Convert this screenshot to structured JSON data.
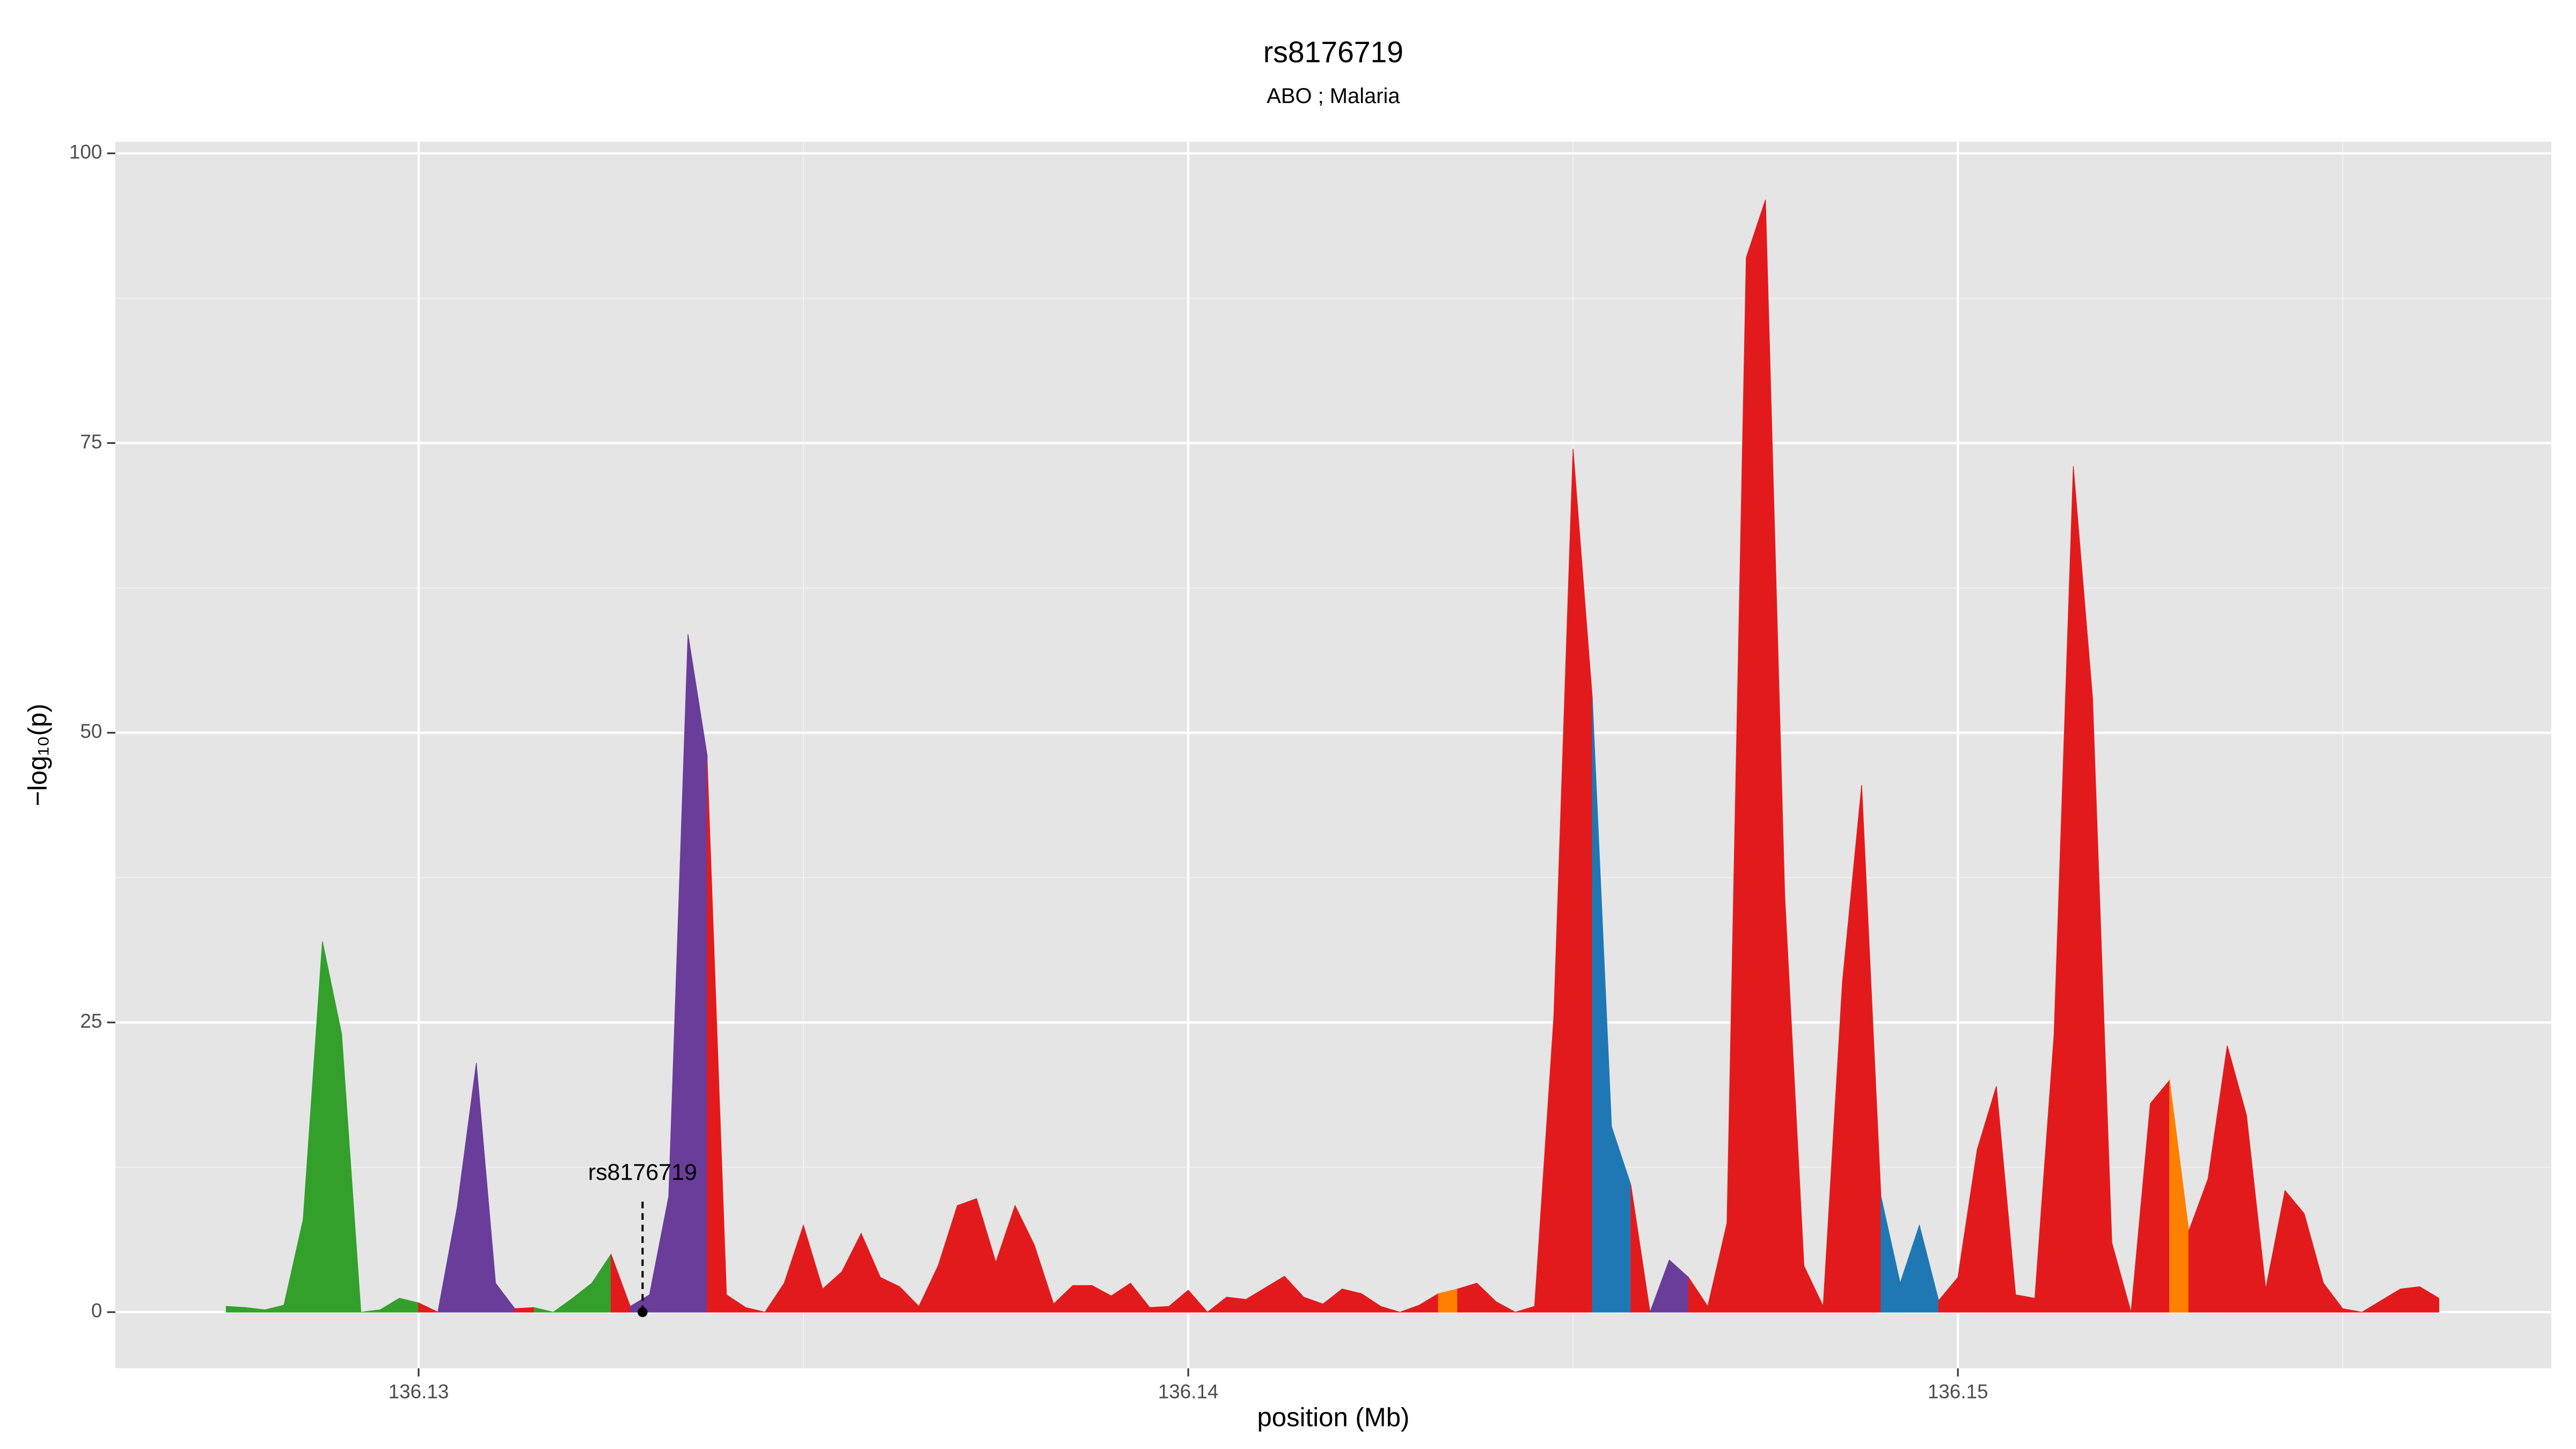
{
  "chart_data": {
    "type": "area",
    "title": "rs8176719",
    "subtitle": "ABO ; Malaria",
    "x_label": "position (Mb)",
    "y_label": "−log₁₀(p)",
    "xlim": [
      136.12606,
      136.15771
    ],
    "ylim": [
      -4.84,
      101
    ],
    "xticks": [
      136.13,
      136.14,
      136.15
    ],
    "yticks": [
      0,
      25,
      50,
      75,
      100
    ],
    "grid": true,
    "series": [
      {
        "color": "#33a02c",
        "x": [
          136.1275,
          136.12775,
          136.128,
          136.12825,
          136.1285,
          136.12875,
          136.129,
          136.12925,
          136.1295,
          136.12975,
          136.13
        ],
        "values": [
          0.5,
          0.4,
          0.2,
          0.6,
          8,
          32,
          24,
          0,
          0.2,
          1.2,
          0.8
        ]
      },
      {
        "color": "#e31a1c",
        "x": [
          136.13,
          136.13025
        ],
        "values": [
          0.8,
          0
        ]
      },
      {
        "color": "#6a3d9a",
        "x": [
          136.13025,
          136.1305,
          136.13075,
          136.131,
          136.13125
        ],
        "values": [
          0,
          9,
          21.5,
          2.5,
          0.3
        ]
      },
      {
        "color": "#e31a1c",
        "x": [
          136.13125,
          136.1315
        ],
        "values": [
          0.3,
          0.4
        ]
      },
      {
        "color": "#33a02c",
        "x": [
          136.1315,
          136.13175,
          136.132,
          136.13225,
          136.1325
        ],
        "values": [
          0.4,
          0,
          1.2,
          2.5,
          5
        ]
      },
      {
        "color": "#e31a1c",
        "x": [
          136.1325,
          136.13275
        ],
        "values": [
          5,
          0.5
        ]
      },
      {
        "color": "#6a3d9a",
        "x": [
          136.13275,
          136.133,
          136.13325,
          136.1335,
          136.13375
        ],
        "values": [
          0.5,
          1.5,
          10,
          58.5,
          48
        ]
      },
      {
        "color": "#e31a1c",
        "x": [
          136.13375,
          136.134,
          136.13425,
          136.1345,
          136.13475,
          136.135,
          136.13525,
          136.1355,
          136.13575,
          136.136,
          136.13625,
          136.1365,
          136.13675,
          136.137,
          136.13725,
          136.1375,
          136.13775,
          136.138,
          136.13825,
          136.1385,
          136.13875,
          136.139,
          136.13925,
          136.1395,
          136.13975,
          136.14,
          136.14025,
          136.1405,
          136.14075,
          136.141,
          136.14125,
          136.1415,
          136.14175,
          136.142,
          136.14225,
          136.1425,
          136.14275,
          136.143,
          136.14325
        ],
        "values": [
          47.5,
          1.5,
          0.4,
          0,
          2.5,
          7.5,
          2,
          3.5,
          6.8,
          3,
          2.2,
          0.5,
          4,
          9.2,
          9.8,
          4.3,
          9.2,
          5.8,
          0.7,
          2.3,
          2.3,
          1.4,
          2.5,
          0.4,
          0.5,
          1.9,
          0,
          1.3,
          1.1,
          2.1,
          3.1,
          1.3,
          0.7,
          2,
          1.6,
          0.5,
          0,
          0.6,
          1.6
        ]
      },
      {
        "color": "#ff7f00",
        "x": [
          136.14325,
          136.1435
        ],
        "values": [
          1.6,
          2
        ]
      },
      {
        "color": "#e31a1c",
        "x": [
          136.1435,
          136.14375,
          136.144,
          136.14425,
          136.1445,
          136.14475,
          136.145,
          136.14525
        ],
        "values": [
          2,
          2.5,
          0.9,
          0,
          0.5,
          25.5,
          74.5,
          53
        ]
      },
      {
        "color": "#1f78b4",
        "x": [
          136.14525,
          136.1455,
          136.14575
        ],
        "values": [
          53,
          16,
          11
        ]
      },
      {
        "color": "#e31a1c",
        "x": [
          136.14575,
          136.146
        ],
        "values": [
          11,
          0
        ]
      },
      {
        "color": "#6a3d9a",
        "x": [
          136.146,
          136.14625,
          136.1465
        ],
        "values": [
          0,
          4.5,
          3
        ]
      },
      {
        "color": "#e31a1c",
        "x": [
          136.1465,
          136.14675,
          136.147,
          136.14725,
          136.1475,
          136.14775,
          136.148,
          136.14825,
          136.1485,
          136.14875,
          136.149
        ],
        "values": [
          3,
          0.5,
          7.7,
          91,
          96,
          36,
          4,
          0.5,
          28.5,
          45.5,
          10
        ]
      },
      {
        "color": "#1f78b4",
        "x": [
          136.149,
          136.14925,
          136.1495,
          136.14975
        ],
        "values": [
          10,
          2.5,
          7.5,
          1
        ]
      },
      {
        "color": "#e31a1c",
        "x": [
          136.14975,
          136.15,
          136.15025,
          136.1505,
          136.15075,
          136.151,
          136.15125,
          136.1515,
          136.15175,
          136.152,
          136.15225,
          136.1525,
          136.15275
        ],
        "values": [
          1,
          3,
          14,
          19.5,
          1.5,
          1.2,
          24,
          73,
          53,
          6,
          0,
          18,
          20
        ]
      },
      {
        "color": "#ff7f00",
        "x": [
          136.15275,
          136.153
        ],
        "values": [
          20,
          7
        ]
      },
      {
        "color": "#e31a1c",
        "x": [
          136.153,
          136.15325,
          136.1535,
          136.15375,
          136.154,
          136.15425,
          136.1545,
          136.15475,
          136.155,
          136.15525,
          136.1555,
          136.15575,
          136.156,
          136.15625
        ],
        "values": [
          7,
          11.5,
          23,
          17,
          2,
          10.5,
          8.5,
          2.5,
          0.3,
          0,
          1,
          2,
          2.2,
          1.2
        ]
      }
    ],
    "annotations": [
      {
        "text": "rs8176719",
        "x": 136.13291,
        "y": 0
      }
    ]
  }
}
